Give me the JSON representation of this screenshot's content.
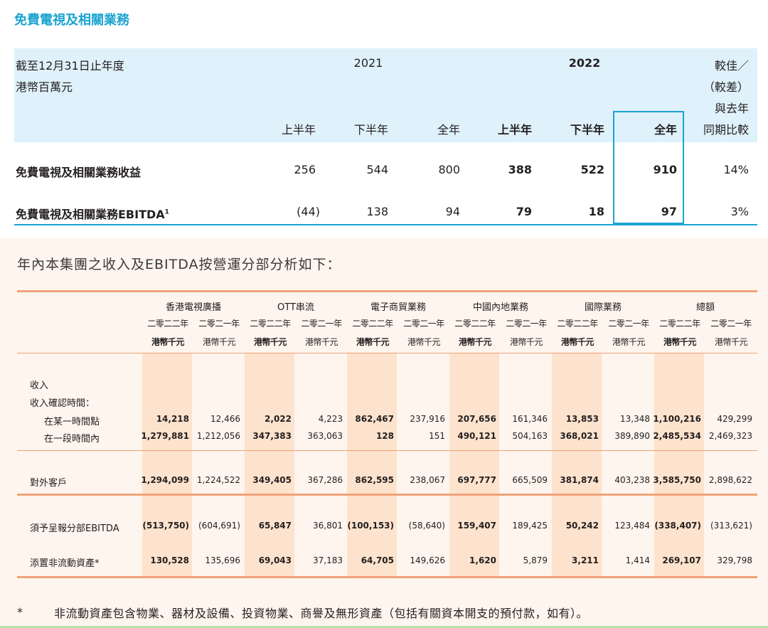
{
  "section1": {
    "title": "免費電視及相關業務",
    "header_left_line1": "截至12月31日止年度",
    "header_left_line2": "港幣百萬元",
    "year_2021": "2021",
    "year_2022": "2022",
    "compare_lines": [
      "較佳／",
      "（較差）",
      "與去年",
      "同期比較"
    ],
    "sub_columns": [
      "上半年",
      "下半年",
      "全年",
      "上半年",
      "下半年",
      "全年"
    ],
    "rows": [
      {
        "label": "免費電視及相關業務收益",
        "values": [
          "256",
          "544",
          "800",
          "388",
          "522",
          "910"
        ],
        "change": "14%"
      },
      {
        "label": "免費電視及相關業務EBITDA",
        "sup": "1",
        "values": [
          "(44)",
          "138",
          "94",
          "79",
          "18",
          "97"
        ],
        "change": "3%"
      }
    ]
  },
  "section2": {
    "heading": "年內本集團之收入及EBITDA按營運分部分析如下：",
    "segments": [
      "香港電視廣播",
      "OTT串流",
      "電子商貿業務",
      "中國內地業務",
      "國際業務",
      "總額"
    ],
    "year_2022": "二零二二年",
    "year_2021": "二零二一年",
    "unit": "港幣千元",
    "labels": {
      "revenue": "收入",
      "timing": "收入確認時間：",
      "point_in_time": "在某一時間點",
      "over_time": "在一段時間內",
      "external": "對外客戶",
      "ebitda": "須予呈報分部EBITDA",
      "capex": "添置非流動資產*"
    },
    "rows": {
      "point_in_time": [
        "14,218",
        "12,466",
        "2,022",
        "4,223",
        "862,467",
        "237,916",
        "207,656",
        "161,346",
        "13,853",
        "13,348",
        "1,100,216",
        "429,299"
      ],
      "over_time": [
        "1,279,881",
        "1,212,056",
        "347,383",
        "363,063",
        "128",
        "151",
        "490,121",
        "504,163",
        "368,021",
        "389,890",
        "2,485,534",
        "2,469,323"
      ],
      "external": [
        "1,294,099",
        "1,224,522",
        "349,405",
        "367,286",
        "862,595",
        "238,067",
        "697,777",
        "665,509",
        "381,874",
        "403,238",
        "3,585,750",
        "2,898,622"
      ],
      "ebitda": [
        "(513,750)",
        "(604,691)",
        "65,847",
        "36,801",
        "(100,153)",
        "(58,640)",
        "159,407",
        "189,425",
        "50,242",
        "123,484",
        "(338,407)",
        "(313,621)"
      ],
      "capex": [
        "130,528",
        "135,696",
        "69,043",
        "37,183",
        "64,705",
        "149,626",
        "1,620",
        "5,879",
        "3,211",
        "1,414",
        "269,107",
        "329,798"
      ]
    },
    "note_marker": "*",
    "note": "非流動資產包含物業、器材及設備、投資物業、商譽及無形資產（包括有關資本開支的預付款，如有）。"
  },
  "colors": {
    "teal": "#1aa3d1",
    "light_blue": "#dff1fb",
    "orange_line": "#f0a27a",
    "peach_bg": "#fdf5ee",
    "shade": "#fde3cd"
  }
}
